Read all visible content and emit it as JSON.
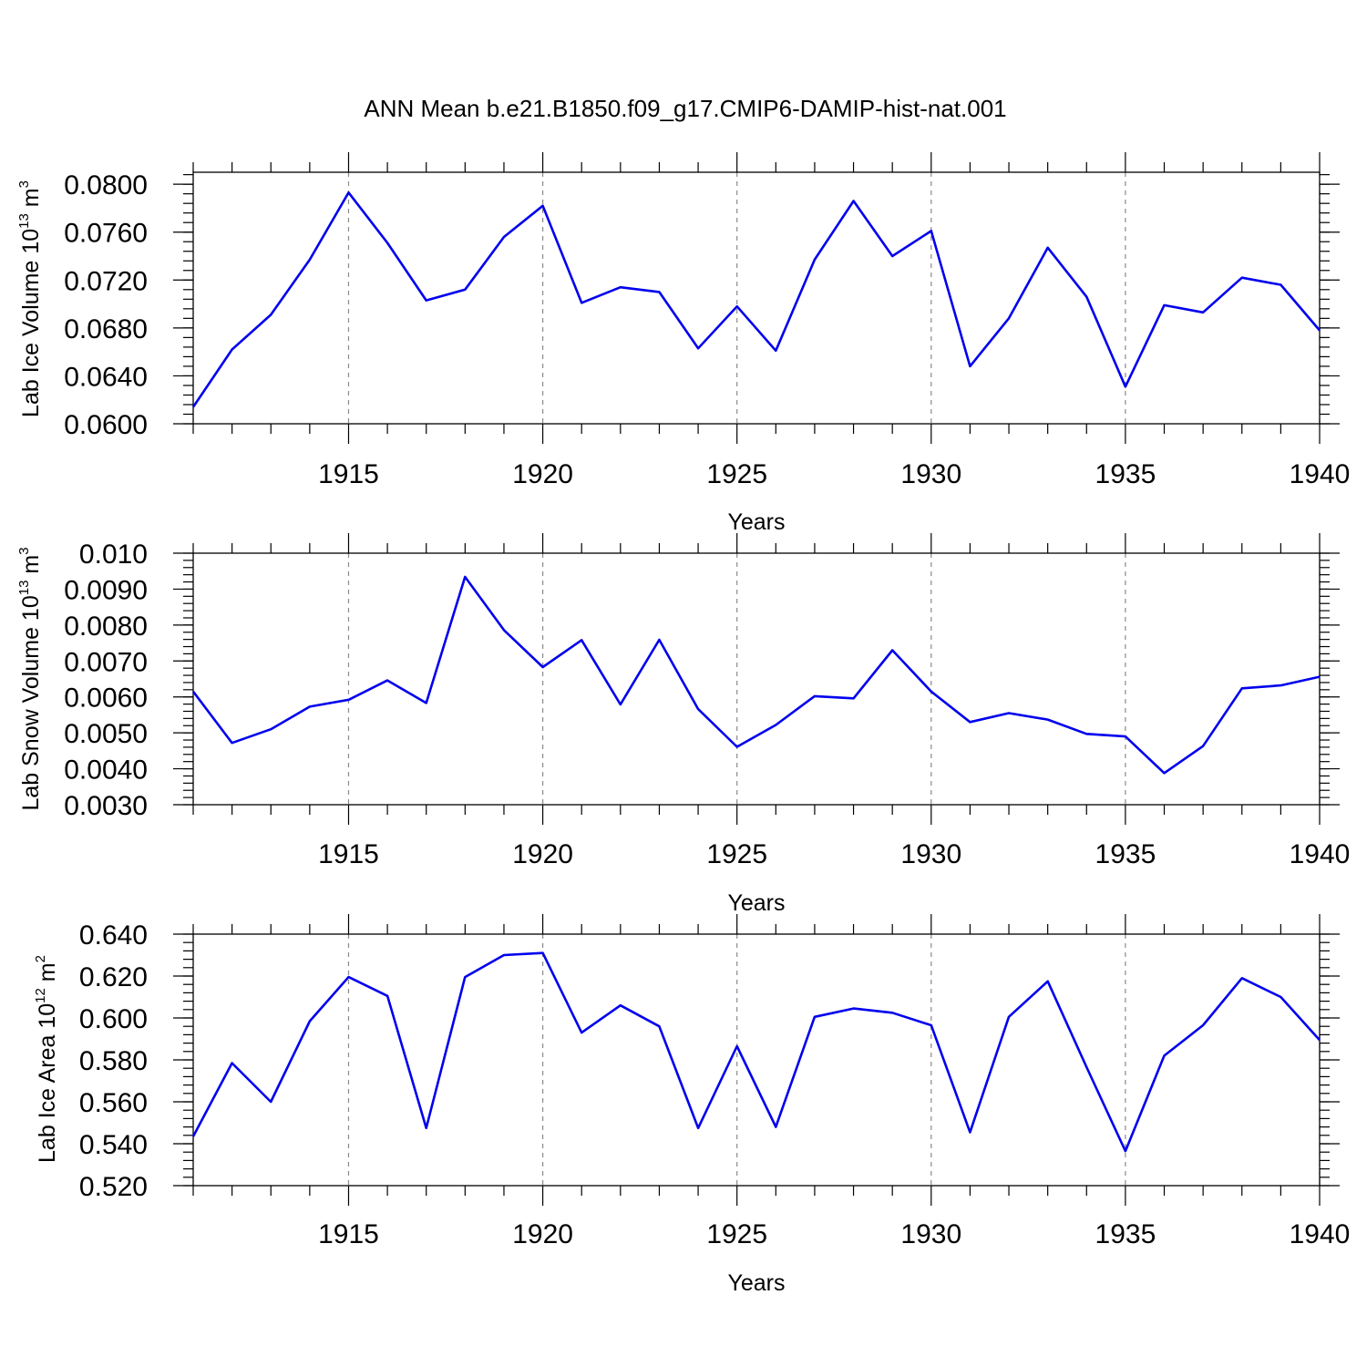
{
  "title": "ANN Mean b.e21.B1850.f09_g17.CMIP6-DAMIP-hist-nat.001",
  "colors": {
    "line": "#0000ee",
    "grid": "#8a8a8a",
    "axis": "#000000"
  },
  "chart_data": [
    {
      "type": "line",
      "ylabel": {
        "main": "Lab Ice Volume 10",
        "exp": "13",
        "unit": " m",
        "unit_exp": "3"
      },
      "xlabel": "Years",
      "xlim": [
        1911,
        1940
      ],
      "ylim": [
        0.06,
        0.081
      ],
      "x_ticks": [
        "1915",
        "1920",
        "1925",
        "1930",
        "1935",
        "1940"
      ],
      "y_ticks": [
        "0.0600",
        "0.0640",
        "0.0680",
        "0.0720",
        "0.0760",
        "0.0800"
      ],
      "grid": "vertical dashed at major x ticks",
      "x": [
        1911,
        1912,
        1913,
        1914,
        1915,
        1916,
        1917,
        1918,
        1919,
        1920,
        1921,
        1922,
        1923,
        1924,
        1925,
        1926,
        1927,
        1928,
        1929,
        1930,
        1931,
        1932,
        1933,
        1934,
        1935,
        1936,
        1937,
        1938,
        1939,
        1940
      ],
      "y": [
        0.0614,
        0.0662,
        0.0691,
        0.0737,
        0.0793,
        0.0751,
        0.0703,
        0.0712,
        0.0756,
        0.0782,
        0.0701,
        0.0714,
        0.071,
        0.0663,
        0.0698,
        0.0661,
        0.0737,
        0.0786,
        0.074,
        0.0761,
        0.0648,
        0.0688,
        0.0747,
        0.0706,
        0.0631,
        0.0699,
        0.0693,
        0.0722,
        0.0716,
        0.0678
      ]
    },
    {
      "type": "line",
      "ylabel": {
        "main": "Lab Snow Volume 10",
        "exp": "13",
        "unit": " m",
        "unit_exp": "3"
      },
      "xlabel": "Years",
      "xlim": [
        1911,
        1940
      ],
      "ylim": [
        0.003,
        0.01
      ],
      "x_ticks": [
        "1915",
        "1920",
        "1925",
        "1930",
        "1935",
        "1940"
      ],
      "y_ticks": [
        "0.0030",
        "0.0040",
        "0.0050",
        "0.0060",
        "0.0070",
        "0.0080",
        "0.0090",
        "0.010"
      ],
      "grid": "vertical dashed at major x ticks",
      "x": [
        1911,
        1912,
        1913,
        1914,
        1915,
        1916,
        1917,
        1918,
        1919,
        1920,
        1921,
        1922,
        1923,
        1924,
        1925,
        1926,
        1927,
        1928,
        1929,
        1930,
        1931,
        1932,
        1933,
        1934,
        1935,
        1936,
        1937,
        1938,
        1939,
        1940
      ],
      "y": [
        0.00615,
        0.00472,
        0.0051,
        0.00573,
        0.00592,
        0.00646,
        0.00583,
        0.00934,
        0.00786,
        0.00683,
        0.00758,
        0.00579,
        0.00759,
        0.00566,
        0.00461,
        0.00522,
        0.00602,
        0.00596,
        0.0073,
        0.00615,
        0.0053,
        0.00555,
        0.00537,
        0.00497,
        0.0049,
        0.00388,
        0.00463,
        0.00624,
        0.00632,
        0.00656
      ]
    },
    {
      "type": "line",
      "ylabel": {
        "main": "Lab Ice Area 10",
        "exp": "12",
        "unit": " m",
        "unit_exp": "2"
      },
      "xlabel": "Years",
      "xlim": [
        1911,
        1940
      ],
      "ylim": [
        0.52,
        0.64
      ],
      "x_ticks": [
        "1915",
        "1920",
        "1925",
        "1930",
        "1935",
        "1940"
      ],
      "y_ticks": [
        "0.520",
        "0.540",
        "0.560",
        "0.580",
        "0.600",
        "0.620",
        "0.640"
      ],
      "grid": "vertical dashed at major x ticks",
      "x": [
        1911,
        1912,
        1913,
        1914,
        1915,
        1916,
        1917,
        1918,
        1919,
        1920,
        1921,
        1922,
        1923,
        1924,
        1925,
        1926,
        1927,
        1928,
        1929,
        1930,
        1931,
        1932,
        1933,
        1934,
        1935,
        1936,
        1937,
        1938,
        1939,
        1940
      ],
      "y": [
        0.5435,
        0.5785,
        0.56,
        0.5985,
        0.6195,
        0.6105,
        0.5475,
        0.6195,
        0.63,
        0.631,
        0.593,
        0.606,
        0.596,
        0.5475,
        0.5865,
        0.548,
        0.6005,
        0.6045,
        0.6025,
        0.5965,
        0.5455,
        0.6005,
        0.6175,
        0.5765,
        0.5365,
        0.582,
        0.5965,
        0.619,
        0.61,
        0.5895
      ]
    }
  ]
}
